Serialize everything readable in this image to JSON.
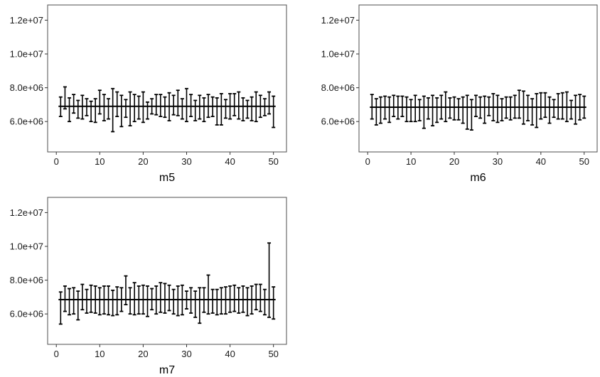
{
  "chart_data": [
    {
      "type": "errorbar",
      "xlabel": "m5",
      "ylabel": "",
      "xlim": [
        -2,
        53
      ],
      "ylim": [
        4200000,
        12900000
      ],
      "xticks": [
        0,
        10,
        20,
        30,
        40,
        50
      ],
      "yticks": [
        6000000,
        8000000,
        10000000,
        12000000
      ],
      "xtick_labels": [
        "0",
        "10",
        "20",
        "30",
        "40",
        "50"
      ],
      "ytick_labels": [
        "6.0e+06",
        "8.0e+06",
        "1.0e+07",
        "1.2e+07"
      ],
      "reference_line": 6900000,
      "grid": false,
      "x": [
        1,
        2,
        3,
        4,
        5,
        6,
        7,
        8,
        9,
        10,
        11,
        12,
        13,
        14,
        15,
        16,
        17,
        18,
        19,
        20,
        21,
        22,
        23,
        24,
        25,
        26,
        27,
        28,
        29,
        30,
        31,
        32,
        33,
        34,
        35,
        36,
        37,
        38,
        39,
        40,
        41,
        42,
        43,
        44,
        45,
        46,
        47,
        48,
        49,
        50
      ],
      "upper": [
        7450000,
        8050000,
        7400000,
        7600000,
        7250000,
        7550000,
        7350000,
        7200000,
        7350000,
        7850000,
        7600000,
        7350000,
        7950000,
        7750000,
        7550000,
        7300000,
        7750000,
        7600000,
        7500000,
        7750000,
        7150000,
        7350000,
        7600000,
        7600000,
        7450000,
        7700000,
        7550000,
        7850000,
        7350000,
        7950000,
        7600000,
        7250000,
        7550000,
        7400000,
        7600000,
        7450000,
        7400000,
        7650000,
        7300000,
        7650000,
        7650000,
        7750000,
        7400000,
        7250000,
        7450000,
        7750000,
        7550000,
        7350000,
        7750000,
        7500000
      ],
      "lower": [
        6300000,
        6750000,
        6000000,
        6500000,
        6200000,
        6150000,
        6350000,
        6000000,
        5950000,
        6450000,
        6050000,
        6150000,
        5400000,
        6300000,
        5700000,
        6250000,
        5750000,
        6000000,
        6150000,
        5950000,
        6150000,
        6450000,
        6400000,
        6300000,
        6250000,
        6050000,
        6400000,
        6350000,
        6150000,
        6000000,
        6300000,
        6050000,
        6150000,
        6000000,
        6250000,
        6300000,
        5800000,
        5800000,
        6200000,
        6150000,
        6350000,
        6150000,
        6050000,
        6200000,
        6050000,
        6000000,
        6250000,
        6350000,
        6450000,
        5650000
      ]
    },
    {
      "type": "errorbar",
      "xlabel": "m6",
      "ylabel": "",
      "xlim": [
        -2,
        53
      ],
      "ylim": [
        4200000,
        12900000
      ],
      "xticks": [
        0,
        10,
        20,
        30,
        40,
        50
      ],
      "yticks": [
        6000000,
        8000000,
        10000000,
        12000000
      ],
      "xtick_labels": [
        "0",
        "10",
        "20",
        "30",
        "40",
        "50"
      ],
      "ytick_labels": [
        "6.0e+06",
        "8.0e+06",
        "1.0e+07",
        "1.2e+07"
      ],
      "reference_line": 6850000,
      "grid": false,
      "x": [
        1,
        2,
        3,
        4,
        5,
        6,
        7,
        8,
        9,
        10,
        11,
        12,
        13,
        14,
        15,
        16,
        17,
        18,
        19,
        20,
        21,
        22,
        23,
        24,
        25,
        26,
        27,
        28,
        29,
        30,
        31,
        32,
        33,
        34,
        35,
        36,
        37,
        38,
        39,
        40,
        41,
        42,
        43,
        44,
        45,
        46,
        47,
        48,
        49,
        50
      ],
      "upper": [
        7600000,
        7350000,
        7450000,
        7500000,
        7450000,
        7550000,
        7500000,
        7500000,
        7450000,
        7300000,
        7550000,
        7300000,
        7500000,
        7400000,
        7550000,
        7400000,
        7550000,
        7750000,
        7400000,
        7450000,
        7350000,
        7450000,
        7550000,
        7300000,
        7550000,
        7450000,
        7500000,
        7450000,
        7650000,
        7550000,
        7350000,
        7450000,
        7450000,
        7550000,
        7850000,
        7800000,
        7550000,
        7350000,
        7650000,
        7700000,
        7700000,
        7450000,
        7300000,
        7650000,
        7700000,
        7750000,
        7250000,
        7550000,
        7600000,
        7500000
      ],
      "lower": [
        6150000,
        5800000,
        5900000,
        6150000,
        5950000,
        6300000,
        6150000,
        6300000,
        6000000,
        6000000,
        6000000,
        6050000,
        5600000,
        6150000,
        5750000,
        5950000,
        6150000,
        6000000,
        6200000,
        6100000,
        6100000,
        5900000,
        5550000,
        5500000,
        6300000,
        6200000,
        5900000,
        6350000,
        6050000,
        5950000,
        6050000,
        6200000,
        6100000,
        6200000,
        6200000,
        5850000,
        6050000,
        5800000,
        5650000,
        6150000,
        6250000,
        5900000,
        6250000,
        6150000,
        6150000,
        6000000,
        6150000,
        5850000,
        6100000,
        6200000
      ]
    },
    {
      "type": "errorbar",
      "xlabel": "m7",
      "ylabel": "",
      "xlim": [
        -2,
        53
      ],
      "ylim": [
        4200000,
        12900000
      ],
      "xticks": [
        0,
        10,
        20,
        30,
        40,
        50
      ],
      "yticks": [
        6000000,
        8000000,
        10000000,
        12000000
      ],
      "xtick_labels": [
        "0",
        "10",
        "20",
        "30",
        "40",
        "50"
      ],
      "ytick_labels": [
        "6.0e+06",
        "8.0e+06",
        "1.0e+07",
        "1.2e+07"
      ],
      "reference_line": 6850000,
      "grid": false,
      "x": [
        1,
        2,
        3,
        4,
        5,
        6,
        7,
        8,
        9,
        10,
        11,
        12,
        13,
        14,
        15,
        16,
        17,
        18,
        19,
        20,
        21,
        22,
        23,
        24,
        25,
        26,
        27,
        28,
        29,
        30,
        31,
        32,
        33,
        34,
        35,
        36,
        37,
        38,
        39,
        40,
        41,
        42,
        43,
        44,
        45,
        46,
        47,
        48,
        49,
        50
      ],
      "upper": [
        7300000,
        7650000,
        7500000,
        7550000,
        7350000,
        7750000,
        7450000,
        7700000,
        7650000,
        7550000,
        7650000,
        7650000,
        7400000,
        7600000,
        7550000,
        8250000,
        7550000,
        7850000,
        7650000,
        7700000,
        7650000,
        7500000,
        7650000,
        7850000,
        7800000,
        7700000,
        7450000,
        7650000,
        7700000,
        7350000,
        7550000,
        7350000,
        7550000,
        7550000,
        8300000,
        7450000,
        7450000,
        7550000,
        7600000,
        7650000,
        7700000,
        7550000,
        7650000,
        7550000,
        7650000,
        7750000,
        7750000,
        7450000,
        10200000,
        7600000
      ],
      "lower": [
        5400000,
        6150000,
        5950000,
        6000000,
        5650000,
        6250000,
        6050000,
        6100000,
        6050000,
        5950000,
        6000000,
        5950000,
        5900000,
        5950000,
        6150000,
        6550000,
        6000000,
        5950000,
        6000000,
        6000000,
        5850000,
        6250000,
        6000000,
        6100000,
        6050000,
        6200000,
        6000000,
        5900000,
        5950000,
        6300000,
        6050000,
        5800000,
        5450000,
        6100000,
        6000000,
        6050000,
        5950000,
        6000000,
        6000000,
        6100000,
        6150000,
        6050000,
        6100000,
        5900000,
        6000000,
        6250000,
        6150000,
        5950000,
        5800000,
        5700000
      ]
    }
  ]
}
